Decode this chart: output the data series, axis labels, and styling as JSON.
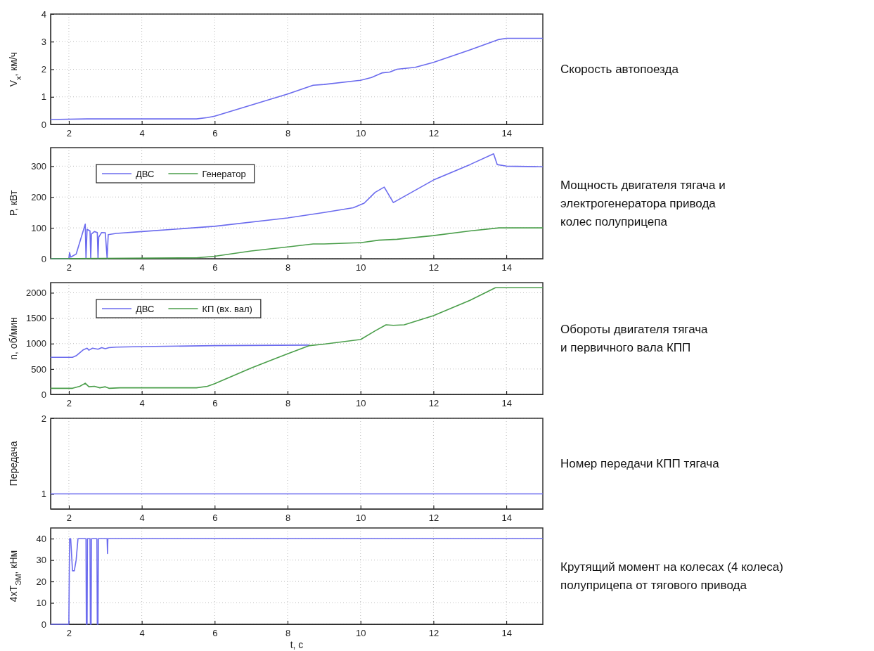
{
  "chart_data": [
    {
      "type": "line",
      "annotations": [
        "Скорость автопоезда"
      ],
      "ylabel": "V$_{x}$, км/ч",
      "xlim": [
        1.5,
        15
      ],
      "xticks": [
        2,
        4,
        6,
        8,
        10,
        12,
        14
      ],
      "ylim": [
        0,
        4
      ],
      "yticks": [
        0,
        1,
        2,
        3,
        4
      ],
      "grid": true,
      "series": [
        {
          "color": "#6b6bee",
          "x": [
            1.5,
            2.5,
            5.5,
            5.8,
            6,
            7,
            8,
            8.7,
            9,
            10,
            10.3,
            10.6,
            10.8,
            11,
            11.5,
            12,
            13,
            13.8,
            14,
            15
          ],
          "values": [
            0.18,
            0.2,
            0.2,
            0.25,
            0.3,
            0.7,
            1.1,
            1.42,
            1.45,
            1.6,
            1.7,
            1.87,
            1.9,
            2.0,
            2.07,
            2.25,
            2.7,
            3.08,
            3.12,
            3.12
          ]
        }
      ]
    },
    {
      "type": "line",
      "annotations": [
        "Мощность двигателя тягача и\nэлектрогенератора привода\nколес полуприцепа"
      ],
      "ylabel": "P, кВт",
      "xlim": [
        1.5,
        15
      ],
      "xticks": [
        2,
        4,
        6,
        8,
        10,
        12,
        14
      ],
      "ylim": [
        0,
        360
      ],
      "yticks": [
        0,
        100,
        200,
        300
      ],
      "grid": true,
      "legend": "top left",
      "series": [
        {
          "name": "ДВС",
          "color": "#6b6bee",
          "x": [
            1.5,
            2,
            2.02,
            2.05,
            2.2,
            2.45,
            2.47,
            2.5,
            2.58,
            2.6,
            2.62,
            2.7,
            2.78,
            2.8,
            2.82,
            2.9,
            3.0,
            3.05,
            3.08,
            3.3,
            4,
            6,
            8,
            9,
            9.8,
            10.1,
            10.4,
            10.65,
            10.9,
            12,
            13,
            13.65,
            13.75,
            14,
            15
          ],
          "values": [
            0,
            0,
            20,
            5,
            15,
            112,
            0,
            95,
            90,
            0,
            80,
            88,
            85,
            0,
            70,
            85,
            84,
            0,
            78,
            82,
            88,
            105,
            132,
            150,
            165,
            180,
            215,
            232,
            182,
            255,
            305,
            340,
            305,
            300,
            298
          ]
        },
        {
          "name": "Генератор",
          "color": "#4a9e4a",
          "x": [
            1.5,
            5.5,
            6,
            7,
            8,
            8.7,
            9,
            10,
            10.5,
            11,
            12,
            13,
            13.8,
            15
          ],
          "values": [
            0,
            3,
            8,
            25,
            38,
            48,
            48,
            52,
            60,
            63,
            75,
            90,
            100,
            100
          ]
        }
      ]
    },
    {
      "type": "line",
      "annotations": [
        "Обороты двигателя тягача\nи первичного вала КПП"
      ],
      "ylabel": "n, об/мин",
      "xlim": [
        1.5,
        15
      ],
      "xticks": [
        2,
        4,
        6,
        8,
        10,
        12,
        14
      ],
      "ylim": [
        0,
        2200
      ],
      "yticks": [
        0,
        500,
        1000,
        1500,
        2000
      ],
      "grid": true,
      "legend": "top left",
      "series": [
        {
          "name": "ДВС",
          "color": "#6b6bee",
          "x": [
            1.5,
            2.1,
            2.2,
            2.4,
            2.5,
            2.55,
            2.65,
            2.8,
            2.9,
            3.0,
            3.1,
            3.3,
            4,
            6,
            8.6
          ],
          "values": [
            730,
            730,
            760,
            880,
            910,
            870,
            910,
            890,
            920,
            900,
            920,
            930,
            940,
            960,
            970
          ]
        },
        {
          "name": "КП (вх. вал)",
          "color": "#4a9e4a",
          "x": [
            1.5,
            2.1,
            2.3,
            2.45,
            2.55,
            2.7,
            2.85,
            3.0,
            3.1,
            3.4,
            5.5,
            5.8,
            6,
            7,
            8,
            8.6,
            9,
            10,
            10.4,
            10.7,
            10.9,
            11.2,
            12,
            13,
            13.7,
            15
          ],
          "values": [
            120,
            120,
            160,
            220,
            150,
            160,
            130,
            150,
            120,
            130,
            130,
            160,
            210,
            520,
            800,
            960,
            990,
            1080,
            1250,
            1370,
            1360,
            1370,
            1550,
            1850,
            2100,
            2100
          ]
        }
      ]
    },
    {
      "type": "line",
      "annotations": [
        "Номер передачи КПП тягача"
      ],
      "ylabel": "Передача",
      "xlim": [
        1.5,
        15
      ],
      "xticks": [
        2,
        4,
        6,
        8,
        10,
        12,
        14
      ],
      "ylim": [
        0.8,
        2
      ],
      "yticks": [
        1,
        2
      ],
      "grid": true,
      "series": [
        {
          "color": "#6b6bee",
          "x": [
            1.5,
            15
          ],
          "values": [
            1,
            1
          ]
        }
      ]
    },
    {
      "type": "line",
      "annotations": [
        "Крутящий момент на колесах (4 колеса)\nполуприцепа от тягового привода"
      ],
      "ylabel": "4xT$_{ЭМ}$, кНм",
      "xlabel": "t, c",
      "xlim": [
        1.5,
        15
      ],
      "xticks": [
        2,
        4,
        6,
        8,
        10,
        12,
        14
      ],
      "ylim": [
        0,
        45
      ],
      "yticks": [
        0,
        10,
        20,
        30,
        40
      ],
      "grid": true,
      "series": [
        {
          "color": "#6b6bee",
          "x": [
            1.5,
            2.0,
            2.02,
            2.05,
            2.1,
            2.15,
            2.2,
            2.25,
            2.47,
            2.48,
            2.5,
            2.51,
            2.58,
            2.59,
            2.61,
            2.62,
            2.77,
            2.78,
            2.8,
            2.81,
            3.05,
            3.06,
            3.07,
            15
          ],
          "values": [
            0,
            0,
            40,
            40,
            25,
            25,
            30,
            40,
            40,
            0,
            0,
            40,
            40,
            0,
            0,
            40,
            40,
            0,
            0,
            40,
            40,
            33,
            40,
            40
          ]
        }
      ]
    }
  ]
}
